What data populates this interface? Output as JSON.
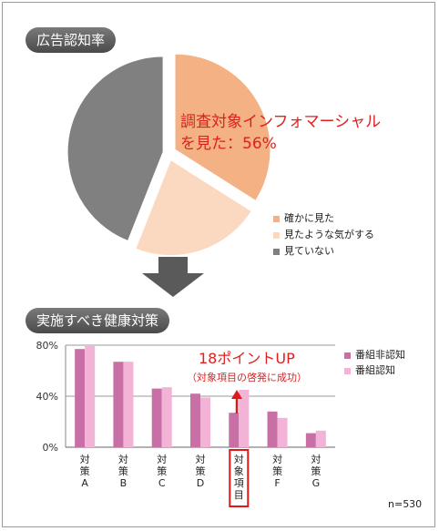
{
  "pie_section": {
    "title": "広告認知率",
    "callout_line1": "調査対象インフォマーシャル",
    "callout_line2": "を見た：56%",
    "legend": [
      {
        "label": "確かに見た",
        "color": "#f4b183"
      },
      {
        "label": "見たような気がする",
        "color": "#fbd8c0"
      },
      {
        "label": "見ていない",
        "color": "#808080"
      }
    ]
  },
  "bar_section": {
    "title": "実施すべき健康対策",
    "callout_main": "18ポイントUP",
    "callout_sub": "（対象項目の啓発に成功）",
    "n_label": "n=530",
    "legend": [
      {
        "label": "番組非認知",
        "color": "#c86fa6"
      },
      {
        "label": "番組認知",
        "color": "#f2b3d7"
      }
    ]
  },
  "chart_data": [
    {
      "type": "pie",
      "title": "広告認知率",
      "slices": [
        {
          "label": "確かに見た",
          "value": 34
        },
        {
          "label": "見たような気がする",
          "value": 22
        },
        {
          "label": "見ていない",
          "value": 44
        }
      ]
    },
    {
      "type": "bar",
      "title": "実施すべき健康対策",
      "categories": [
        "対策A",
        "対策B",
        "対策C",
        "対策D",
        "対象項目",
        "対策F",
        "対策G"
      ],
      "series": [
        {
          "name": "番組非認知",
          "values": [
            77,
            67,
            46,
            42,
            27,
            28,
            11
          ]
        },
        {
          "name": "番組認知",
          "values": [
            80,
            67,
            47,
            39,
            45,
            23,
            13
          ]
        }
      ],
      "ylim": [
        0,
        80
      ],
      "yticks": [
        "0%",
        "40%",
        "80%"
      ],
      "highlight_category": "対象項目"
    }
  ]
}
